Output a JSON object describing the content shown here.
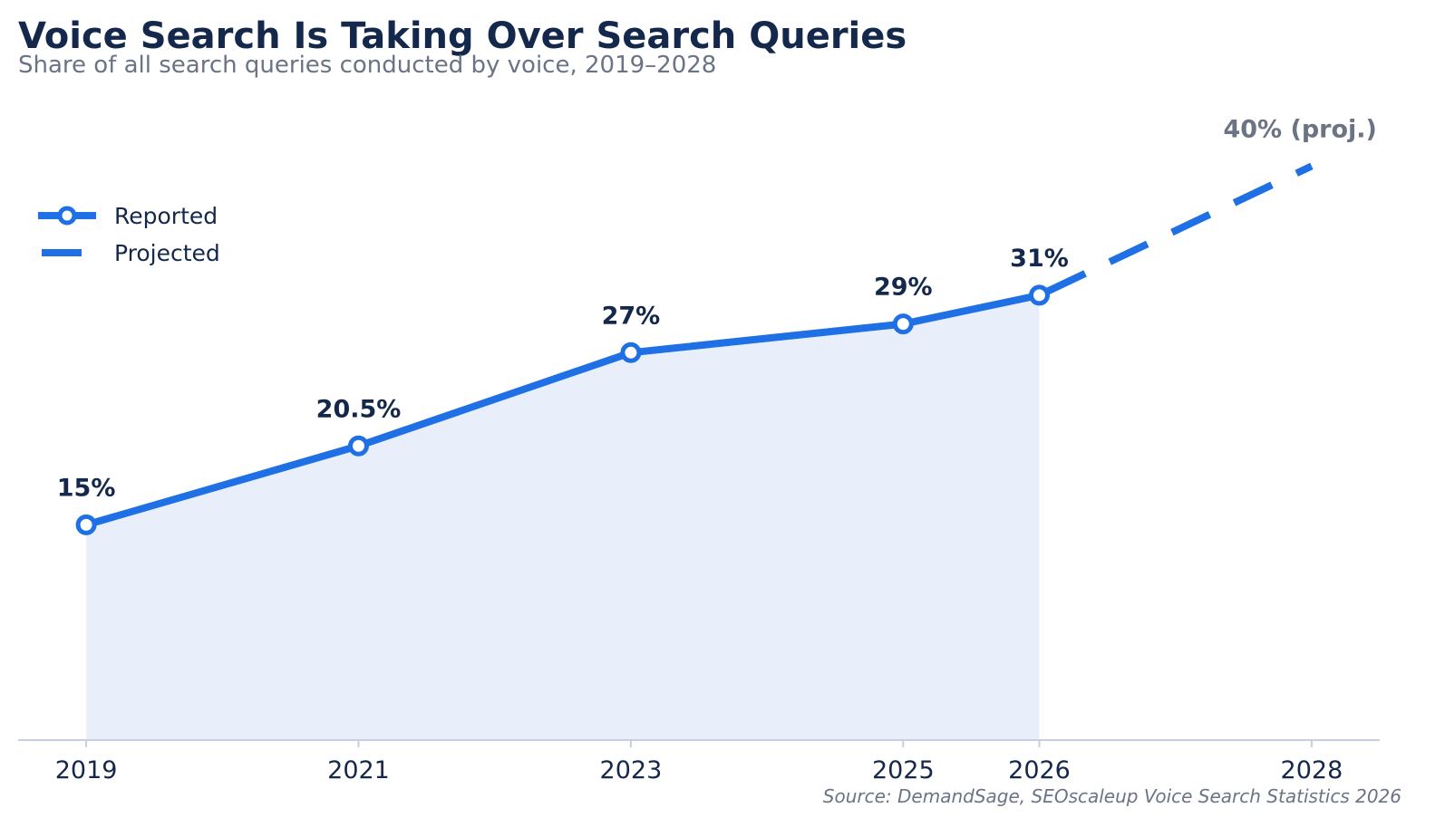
{
  "chart_data": {
    "type": "line",
    "title": "Voice Search Is Taking Over Search Queries",
    "subtitle": "Share of all search queries conducted by voice, 2019–2028",
    "source": "Source: DemandSage, SEOscaleup Voice Search Statistics 2026",
    "x_ticks": [
      2019,
      2021,
      2023,
      2025,
      2026,
      2028
    ],
    "xlim": [
      2018.5,
      2028.5
    ],
    "ylim": [
      0,
      44
    ],
    "grid": false,
    "legend_position": "top-left",
    "series": [
      {
        "name": "Reported",
        "style": "solid",
        "marker": "circle",
        "fill_area": true,
        "x": [
          2019,
          2021,
          2023,
          2025,
          2026
        ],
        "y": [
          15,
          20.5,
          27,
          29,
          31
        ],
        "labels": [
          "15%",
          "20.5%",
          "27%",
          "29%",
          "31%"
        ]
      },
      {
        "name": "Projected",
        "style": "dashed",
        "x": [
          2026,
          2028
        ],
        "y": [
          31,
          40
        ],
        "end_label": "40% (proj.)"
      }
    ],
    "colors": {
      "line": "#1f6fe5",
      "area": "#e8effb",
      "axis": "#c8cedd",
      "text": "#14284b",
      "muted": "#6b7385"
    }
  }
}
